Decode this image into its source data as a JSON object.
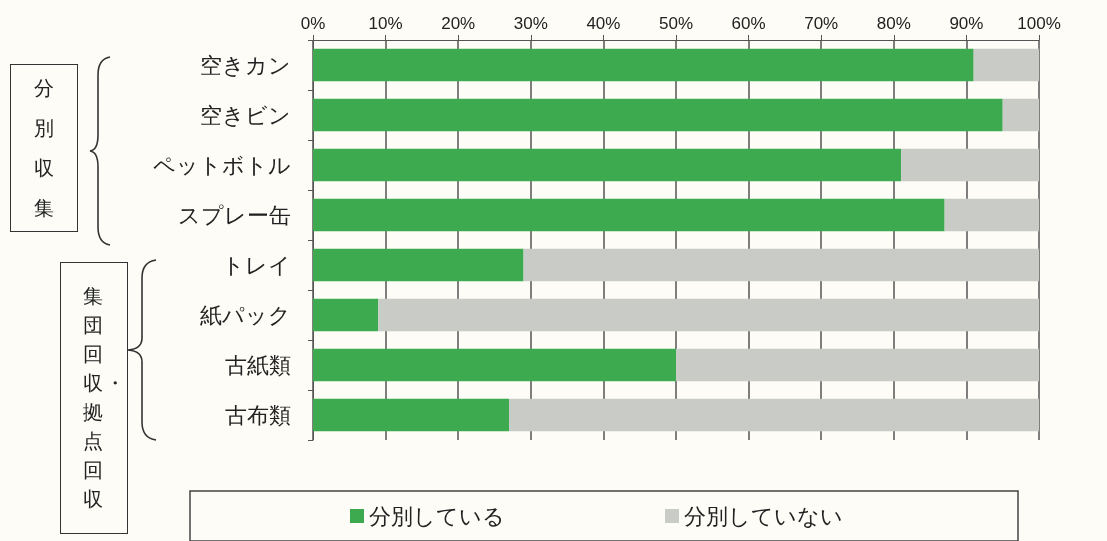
{
  "chart_data": {
    "type": "bar",
    "orientation": "horizontal",
    "stacked": true,
    "categories": [
      "空きカン",
      "空きビン",
      "ペットボトル",
      "スプレー缶",
      "トレイ",
      "紙パック",
      "古紙類",
      "古布類"
    ],
    "series": [
      {
        "name": "分別している",
        "color": "#3daa4f",
        "values": [
          91,
          95,
          81,
          87,
          29,
          9,
          50,
          27
        ]
      },
      {
        "name": "分別していない",
        "color": "#c8cbc6",
        "values": [
          9,
          5,
          19,
          13,
          71,
          91,
          50,
          73
        ]
      }
    ],
    "xlim": [
      0,
      100
    ],
    "xticks": [
      {
        "value": 0,
        "label": "0%"
      },
      {
        "value": 10,
        "label": "10%"
      },
      {
        "value": 20,
        "label": "20%"
      },
      {
        "value": 30,
        "label": "30%"
      },
      {
        "value": 40,
        "label": "40%"
      },
      {
        "value": 50,
        "label": "50%"
      },
      {
        "value": 60,
        "label": "60%"
      },
      {
        "value": 70,
        "label": "70%"
      },
      {
        "value": 80,
        "label": "80%"
      },
      {
        "value": 90,
        "label": "90%"
      },
      {
        "value": 100,
        "label": "100%"
      }
    ],
    "grid": "x",
    "legend": "bottom",
    "annotations": [
      "分別収集",
      "集団回収・拠点回収"
    ]
  }
}
